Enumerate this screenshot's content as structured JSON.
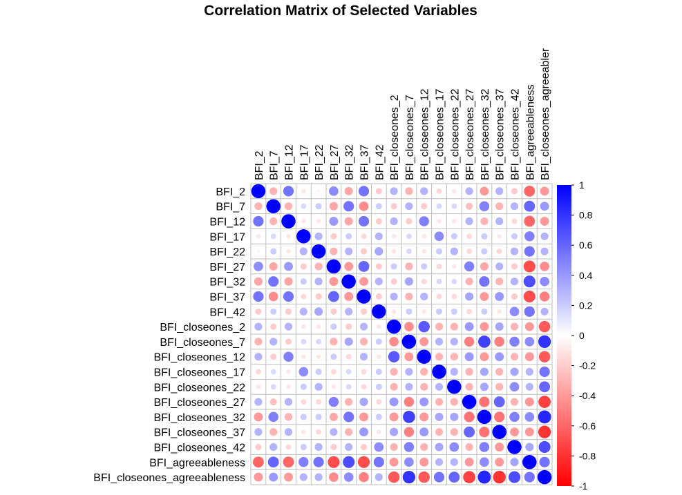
{
  "chart_data": {
    "type": "heatmap",
    "title": "Correlation Matrix of Selected Variables",
    "variables": [
      "BFI_2",
      "BFI_7",
      "BFI_12",
      "BFI_17",
      "BFI_22",
      "BFI_27",
      "BFI_32",
      "BFI_37",
      "BFI_42",
      "BFI_closeones_2",
      "BFI_closeones_7",
      "BFI_closeones_12",
      "BFI_closeones_17",
      "BFI_closeones_22",
      "BFI_closeones_27",
      "BFI_closeones_32",
      "BFI_closeones_37",
      "BFI_closeones_42",
      "BFI_agreeableness",
      "BFI_closeones_agreeableness"
    ],
    "top_labels": [
      "BFI_2",
      "BFI_7",
      "BFI_12",
      "BFI_17",
      "BFI_22",
      "BFI_27",
      "BFI_32",
      "BFI_37",
      "BFI_42",
      "BFI_closeones_2",
      "BFI_closeones_7",
      "BFI_closeones_12",
      "BFI_closeones_17",
      "BFI_closeones_22",
      "BFI_closeones_27",
      "BFI_closeones_32",
      "BFI_closeones_37",
      "BFI_closeones_42",
      "BFI_agreeableness",
      "BFI_closeones_agreeabler"
    ],
    "matrix": [
      [
        1,
        -0.3,
        0.55,
        -0.1,
        -0.05,
        0.45,
        -0.35,
        0.55,
        -0.2,
        0.3,
        -0.3,
        0.3,
        -0.15,
        -0.1,
        0.3,
        -0.4,
        0.3,
        -0.2,
        -0.6,
        -0.4
      ],
      [
        -0.3,
        1,
        -0.3,
        0.15,
        0.2,
        -0.35,
        0.55,
        -0.45,
        0.2,
        -0.2,
        0.3,
        -0.2,
        0.15,
        0.15,
        -0.25,
        0.5,
        -0.3,
        0.3,
        0.6,
        0.4
      ],
      [
        0.55,
        -0.3,
        1,
        -0.1,
        -0.1,
        0.4,
        -0.35,
        0.55,
        -0.2,
        0.3,
        -0.2,
        0.5,
        -0.1,
        -0.1,
        0.3,
        -0.3,
        0.3,
        -0.15,
        -0.6,
        -0.4
      ],
      [
        -0.1,
        0.15,
        -0.1,
        1,
        0.3,
        -0.2,
        0.2,
        -0.15,
        0.3,
        -0.1,
        0.15,
        -0.1,
        0.45,
        0.2,
        -0.15,
        0.2,
        -0.1,
        0.2,
        0.5,
        0.3
      ],
      [
        -0.05,
        0.2,
        -0.1,
        0.3,
        1,
        -0.3,
        0.3,
        -0.2,
        0.35,
        -0.1,
        0.15,
        -0.1,
        0.2,
        0.3,
        -0.15,
        0.2,
        -0.15,
        0.3,
        0.55,
        0.3
      ],
      [
        0.45,
        -0.35,
        0.4,
        -0.2,
        -0.3,
        1,
        -0.4,
        0.6,
        -0.2,
        0.2,
        -0.3,
        0.2,
        -0.15,
        -0.1,
        0.5,
        -0.35,
        0.3,
        -0.2,
        -0.7,
        -0.45
      ],
      [
        -0.35,
        0.55,
        -0.35,
        0.2,
        0.3,
        -0.4,
        1,
        -0.4,
        0.3,
        -0.2,
        0.35,
        -0.15,
        0.15,
        0.15,
        -0.3,
        0.55,
        -0.3,
        0.3,
        0.7,
        0.45
      ],
      [
        0.55,
        -0.45,
        0.55,
        -0.15,
        -0.2,
        0.6,
        -0.4,
        1,
        -0.2,
        0.3,
        -0.3,
        0.3,
        -0.15,
        -0.15,
        0.35,
        -0.4,
        0.4,
        -0.2,
        -0.7,
        -0.5
      ],
      [
        -0.2,
        0.2,
        -0.2,
        0.3,
        0.35,
        -0.2,
        0.3,
        -0.2,
        1,
        -0.1,
        0.2,
        -0.1,
        0.2,
        0.2,
        -0.15,
        0.2,
        -0.1,
        0.45,
        0.55,
        0.3
      ],
      [
        0.3,
        -0.2,
        0.3,
        -0.1,
        -0.1,
        0.2,
        -0.2,
        0.3,
        -0.1,
        1,
        -0.45,
        0.65,
        -0.3,
        -0.3,
        0.4,
        -0.4,
        0.35,
        -0.3,
        -0.4,
        -0.65
      ],
      [
        -0.3,
        0.3,
        -0.2,
        0.15,
        0.15,
        -0.3,
        0.35,
        -0.3,
        0.2,
        -0.45,
        1,
        -0.4,
        0.3,
        0.3,
        -0.5,
        0.75,
        -0.5,
        0.5,
        0.45,
        0.8
      ],
      [
        0.3,
        -0.2,
        0.5,
        -0.1,
        -0.1,
        0.2,
        -0.15,
        0.3,
        -0.1,
        0.65,
        -0.4,
        1,
        -0.3,
        -0.3,
        0.4,
        -0.4,
        0.4,
        -0.3,
        -0.4,
        -0.65
      ],
      [
        -0.15,
        0.15,
        -0.1,
        0.45,
        0.2,
        -0.15,
        0.15,
        -0.15,
        0.2,
        -0.3,
        0.3,
        -0.3,
        1,
        0.3,
        -0.3,
        0.35,
        -0.3,
        0.35,
        0.3,
        0.55
      ],
      [
        -0.1,
        0.15,
        -0.1,
        0.2,
        0.3,
        -0.1,
        0.15,
        -0.15,
        0.2,
        -0.3,
        0.3,
        -0.3,
        0.3,
        1,
        -0.3,
        0.35,
        -0.3,
        0.45,
        0.3,
        0.6
      ],
      [
        0.3,
        -0.25,
        0.3,
        -0.15,
        -0.15,
        0.5,
        -0.3,
        0.35,
        -0.15,
        0.4,
        -0.5,
        0.4,
        -0.3,
        -0.3,
        1,
        -0.55,
        0.6,
        -0.3,
        -0.4,
        -0.75
      ],
      [
        -0.4,
        0.5,
        -0.3,
        0.2,
        0.2,
        -0.35,
        0.55,
        -0.4,
        0.2,
        -0.4,
        0.75,
        -0.4,
        0.35,
        0.35,
        -0.55,
        1,
        -0.55,
        0.5,
        0.45,
        0.85
      ],
      [
        0.3,
        -0.3,
        0.3,
        -0.1,
        -0.15,
        0.3,
        -0.3,
        0.4,
        -0.1,
        0.35,
        -0.5,
        0.4,
        -0.3,
        -0.3,
        0.6,
        -0.55,
        1,
        -0.4,
        -0.4,
        -0.8
      ],
      [
        -0.2,
        0.3,
        -0.15,
        0.2,
        0.3,
        -0.2,
        0.3,
        -0.2,
        0.45,
        -0.3,
        0.5,
        -0.3,
        0.35,
        0.45,
        -0.3,
        0.5,
        -0.4,
        1,
        0.35,
        0.7
      ],
      [
        -0.6,
        0.6,
        -0.6,
        0.5,
        0.55,
        -0.7,
        0.7,
        -0.7,
        0.55,
        -0.4,
        0.45,
        -0.4,
        0.3,
        0.3,
        -0.4,
        0.45,
        -0.4,
        0.35,
        1,
        0.55
      ],
      [
        -0.4,
        0.4,
        -0.4,
        0.3,
        0.3,
        -0.45,
        0.45,
        -0.5,
        0.3,
        -0.65,
        0.8,
        -0.65,
        0.55,
        0.6,
        -0.75,
        0.85,
        -0.8,
        0.7,
        0.55,
        1
      ]
    ],
    "colorbar_ticks": [
      "1",
      "0.8",
      "0.6",
      "0.4",
      "0.2",
      "0",
      "-0.2",
      "-0.4",
      "-0.6",
      "-0.8",
      "-1"
    ],
    "ylim": [
      -1,
      1
    ],
    "colors": {
      "positive": "#0000FF",
      "zero": "#FFFFFF",
      "negative": "#FF0000",
      "grid": "#BEBEBE"
    }
  }
}
